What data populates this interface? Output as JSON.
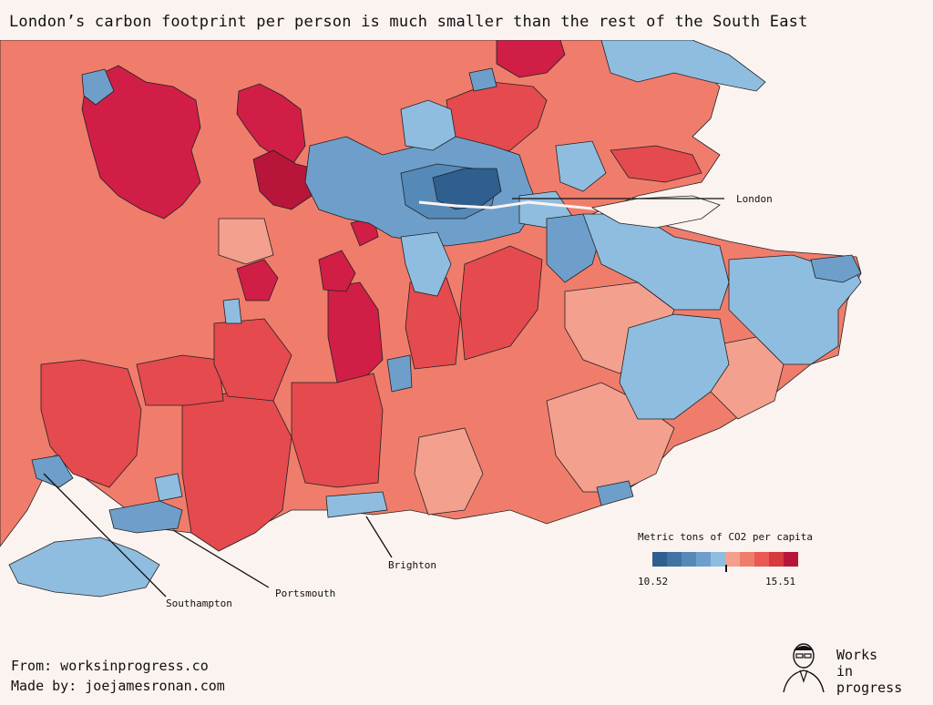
{
  "title": "London’s carbon footprint per person is much smaller than the rest of the South East",
  "labels": {
    "london": "London",
    "brighton": "Brighton",
    "portsmouth": "Portsmouth",
    "southampton": "Southampton"
  },
  "legend": {
    "title": "Metric tons of CO2 per capita",
    "min": "10.52",
    "max": "15.51",
    "colors": [
      "#2e5f8f",
      "#3f73a3",
      "#5589b8",
      "#6e9fcb",
      "#8fbde0",
      "#f4a08e",
      "#f07d6c",
      "#e85a52",
      "#d8383f",
      "#b8153a"
    ]
  },
  "footer": {
    "source": "From: worksinprogress.co",
    "credit": "Made by: joejamesronan.com"
  },
  "brand": [
    "Works",
    "in",
    "progress"
  ],
  "colors": {
    "background": "#fbf3f0",
    "sea": "#fbf3f0",
    "darkest_blue": "#2e5f8f",
    "light_blue": "#8fbde0",
    "darkest_red": "#c8163f"
  }
}
